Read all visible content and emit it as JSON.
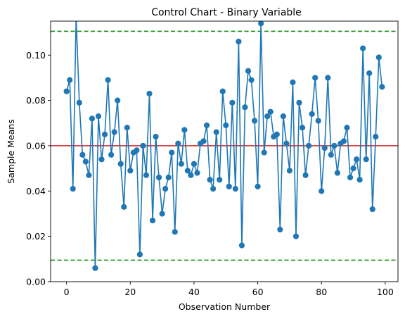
{
  "chart_data": {
    "type": "line",
    "title": "Control Chart - Binary Variable",
    "xlabel": "Observation Number",
    "ylabel": "Sample Means",
    "xlim": [
      -5,
      104
    ],
    "ylim": [
      0.0,
      0.115
    ],
    "xticks": [
      0,
      20,
      40,
      60,
      80,
      100
    ],
    "yticks": [
      0.0,
      0.02,
      0.04,
      0.06,
      0.08,
      0.1
    ],
    "ytick_labels": [
      "0.00",
      "0.02",
      "0.04",
      "0.06",
      "0.08",
      "0.10"
    ],
    "grid": false,
    "center_line": {
      "value": 0.06,
      "color": "#d62728",
      "style": "solid"
    },
    "control_limits": {
      "upper": 0.1105,
      "lower": 0.0095,
      "color": "#1a8c1a",
      "style": "dashed"
    },
    "series": [
      {
        "color": "#1f77b4",
        "marker": "circle",
        "x": [
          0,
          1,
          2,
          3,
          4,
          5,
          6,
          7,
          8,
          9,
          10,
          11,
          12,
          13,
          14,
          15,
          16,
          17,
          18,
          19,
          20,
          21,
          22,
          23,
          24,
          25,
          26,
          27,
          28,
          29,
          30,
          31,
          32,
          33,
          34,
          35,
          36,
          37,
          38,
          39,
          40,
          41,
          42,
          43,
          44,
          45,
          46,
          47,
          48,
          49,
          50,
          51,
          52,
          53,
          54,
          55,
          56,
          57,
          58,
          59,
          60,
          61,
          62,
          63,
          64,
          65,
          66,
          67,
          68,
          69,
          70,
          71,
          72,
          73,
          74,
          75,
          76,
          77,
          78,
          79,
          80,
          81,
          82,
          83,
          84,
          85,
          86,
          87,
          88,
          89,
          90,
          91,
          92,
          93,
          94,
          95,
          96,
          97,
          98,
          99
        ],
        "values": [
          0.084,
          0.089,
          0.041,
          0.117,
          0.079,
          0.056,
          0.053,
          0.047,
          0.072,
          0.006,
          0.073,
          0.054,
          0.065,
          0.089,
          0.056,
          0.066,
          0.08,
          0.052,
          0.033,
          0.068,
          0.049,
          0.057,
          0.058,
          0.012,
          0.06,
          0.047,
          0.083,
          0.027,
          0.064,
          0.046,
          0.03,
          0.041,
          0.046,
          0.057,
          0.022,
          0.061,
          0.052,
          0.067,
          0.049,
          0.047,
          0.052,
          0.048,
          0.061,
          0.062,
          0.069,
          0.045,
          0.041,
          0.066,
          0.045,
          0.084,
          0.069,
          0.042,
          0.079,
          0.041,
          0.106,
          0.016,
          0.077,
          0.093,
          0.089,
          0.071,
          0.042,
          0.114,
          0.057,
          0.073,
          0.075,
          0.064,
          0.065,
          0.023,
          0.073,
          0.061,
          0.049,
          0.088,
          0.02,
          0.079,
          0.068,
          0.047,
          0.06,
          0.074,
          0.09,
          0.071,
          0.04,
          0.059,
          0.09,
          0.056,
          0.06,
          0.048,
          0.061,
          0.062,
          0.068,
          0.046,
          0.05,
          0.054,
          0.045,
          0.103,
          0.054,
          0.092,
          0.032,
          0.064,
          0.099,
          0.086
        ]
      }
    ]
  }
}
